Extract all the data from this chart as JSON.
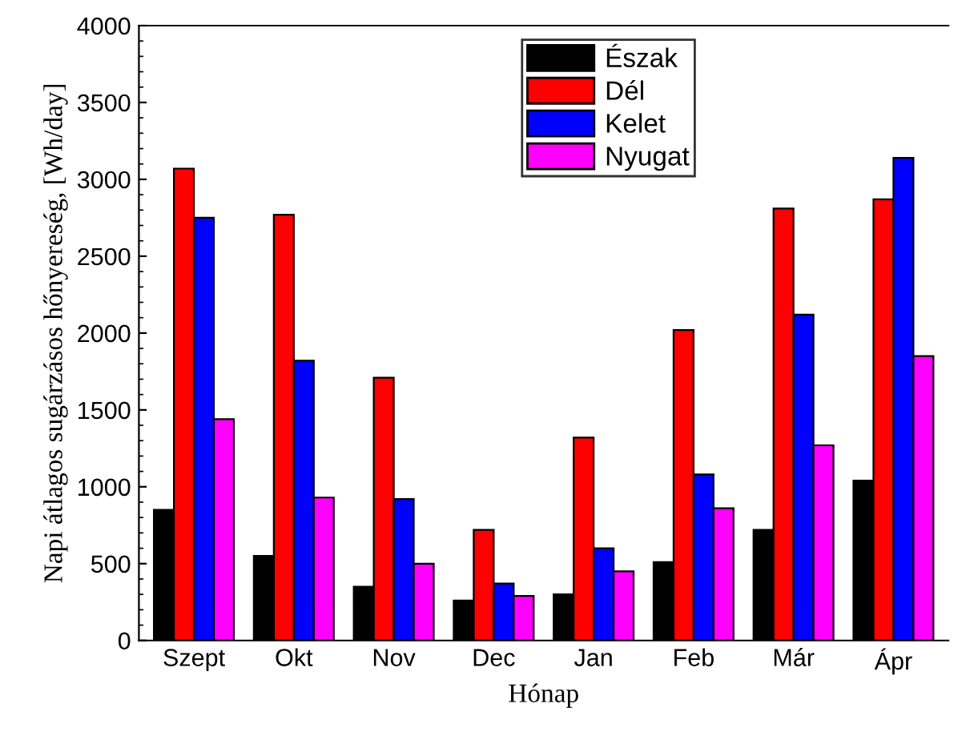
{
  "chart_data": {
    "type": "bar",
    "xlabel": "Hónap",
    "ylabel": "Napi átlagos sugárzásos hőnyereség, [Wh/day]",
    "categories": [
      "Szept",
      "Okt",
      "Nov",
      "Dec",
      "Jan",
      "Feb",
      "Már",
      "Ápr"
    ],
    "series": [
      {
        "name": "Észak",
        "color": "#000000",
        "values": [
          850,
          550,
          350,
          260,
          300,
          510,
          720,
          1040
        ]
      },
      {
        "name": "Dél",
        "color": "#ff0000",
        "values": [
          3070,
          2770,
          1710,
          720,
          1320,
          2020,
          2810,
          2870
        ]
      },
      {
        "name": "Kelet",
        "color": "#0000ff",
        "values": [
          2750,
          1820,
          920,
          370,
          600,
          1080,
          2120,
          3140
        ]
      },
      {
        "name": "Nyugat",
        "color": "#ff00ff",
        "values": [
          1440,
          930,
          500,
          290,
          450,
          860,
          1270,
          1850
        ]
      }
    ],
    "ylim": [
      0,
      4000
    ],
    "yticks": [
      0,
      500,
      1000,
      1500,
      2000,
      2500,
      3000,
      3500,
      4000
    ],
    "grid": false,
    "legend": "top"
  }
}
